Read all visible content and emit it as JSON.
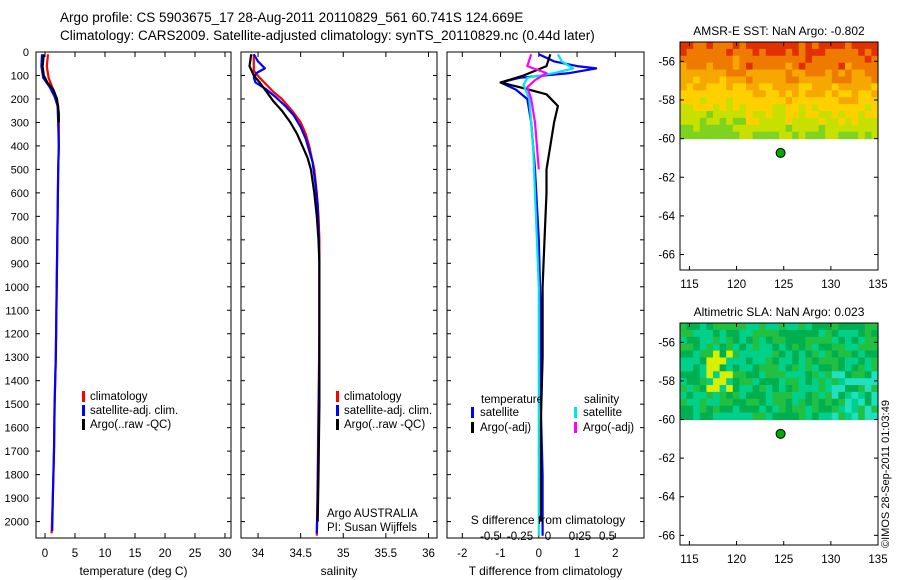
{
  "header": {
    "line1": "Argo profile: CS 5903675_17 28-Aug-2011 20110829_561 60.741S 124.669E",
    "line2": "Climatology: CARS2009. Satellite-adjusted climatology: synTS_20110829.nc (0.44d later)"
  },
  "credit": "©IMOS 28-Sep-2011 01:03:49",
  "colors": {
    "climatology": "#ff0000",
    "satellite": "#0000ff",
    "argo": "#000000",
    "sat_salinity": "#00e5e5",
    "argo_salinity": "#ff00ff",
    "float_marker": "#00aa00"
  },
  "chart_data": [
    {
      "type": "line",
      "name": "temperature-profile",
      "xlabel": "temperature (deg C)",
      "ylabel": "",
      "xlim": [
        -1.5,
        31
      ],
      "ylim": [
        2070,
        0
      ],
      "xticks": [
        0,
        5,
        10,
        15,
        20,
        25,
        30
      ],
      "yticks": [
        0,
        100,
        200,
        300,
        400,
        500,
        600,
        700,
        800,
        900,
        1000,
        1100,
        1200,
        1300,
        1400,
        1500,
        1600,
        1700,
        1800,
        1900,
        2000
      ],
      "legend": [
        "climatology",
        "satellite-adj. clim.",
        "Argo(..raw -QC)"
      ],
      "series": [
        {
          "name": "climatology",
          "color": "#ff0000",
          "points": [
            [
              0.5,
              10
            ],
            [
              0.3,
              60
            ],
            [
              0.6,
              110
            ],
            [
              1.2,
              150
            ],
            [
              1.8,
              190
            ],
            [
              2.2,
              230
            ],
            [
              2.3,
              300
            ],
            [
              2.3,
              400
            ],
            [
              2.2,
              500
            ],
            [
              2.1,
              700
            ],
            [
              2.0,
              900
            ],
            [
              1.9,
              1100
            ],
            [
              1.8,
              1300
            ],
            [
              1.6,
              1500
            ],
            [
              1.5,
              1700
            ],
            [
              1.3,
              1900
            ],
            [
              1.1,
              2050
            ]
          ]
        },
        {
          "name": "satellite-adj. clim.",
          "color": "#0000ff",
          "points": [
            [
              -0.5,
              10
            ],
            [
              -0.6,
              60
            ],
            [
              -0.3,
              110
            ],
            [
              0.8,
              150
            ],
            [
              1.6,
              190
            ],
            [
              2.1,
              230
            ],
            [
              2.2,
              300
            ],
            [
              2.3,
              400
            ],
            [
              2.2,
              500
            ],
            [
              2.1,
              700
            ],
            [
              2.0,
              900
            ],
            [
              1.9,
              1100
            ],
            [
              1.8,
              1300
            ],
            [
              1.6,
              1500
            ],
            [
              1.5,
              1700
            ],
            [
              1.3,
              1900
            ],
            [
              1.2,
              2040
            ]
          ]
        },
        {
          "name": "Argo(..raw -QC)",
          "color": "#000000",
          "points": [
            [
              -0.2,
              10
            ],
            [
              -0.4,
              60
            ],
            [
              -0.2,
              100
            ],
            [
              0.4,
              130
            ],
            [
              1.4,
              160
            ],
            [
              2.0,
              200
            ],
            [
              2.3,
              260
            ],
            [
              2.3,
              300
            ]
          ]
        }
      ]
    },
    {
      "type": "line",
      "name": "salinity-profile",
      "xlabel": "salinity",
      "xlim": [
        33.8,
        36.1
      ],
      "ylim": [
        2070,
        0
      ],
      "xticks": [
        34,
        34.5,
        35,
        35.5,
        36
      ],
      "legend": [
        "climatology",
        "satellite-adj. clim.",
        "Argo(..raw -QC)"
      ],
      "annotations": [
        "Argo AUSTRALIA",
        "PI: Susan Wijffels"
      ],
      "series": [
        {
          "name": "climatology",
          "color": "#ff0000",
          "points": [
            [
              33.95,
              10
            ],
            [
              33.95,
              80
            ],
            [
              34.02,
              110
            ],
            [
              34.1,
              140
            ],
            [
              34.18,
              170
            ],
            [
              34.28,
              200
            ],
            [
              34.4,
              250
            ],
            [
              34.5,
              300
            ],
            [
              34.56,
              350
            ],
            [
              34.6,
              400
            ],
            [
              34.63,
              450
            ],
            [
              34.66,
              500
            ],
            [
              34.69,
              600
            ],
            [
              34.71,
              700
            ],
            [
              34.72,
              800
            ],
            [
              34.72,
              900
            ],
            [
              34.72,
              1000
            ],
            [
              34.72,
              1200
            ],
            [
              34.71,
              1500
            ],
            [
              34.7,
              1800
            ],
            [
              34.69,
              2060
            ]
          ]
        },
        {
          "name": "satellite-adj. clim.",
          "color": "#0000ff",
          "points": [
            [
              33.95,
              10
            ],
            [
              34.0,
              40
            ],
            [
              34.08,
              70
            ],
            [
              33.98,
              90
            ],
            [
              33.95,
              110
            ],
            [
              33.97,
              130
            ],
            [
              34.1,
              160
            ],
            [
              34.2,
              190
            ],
            [
              34.32,
              230
            ],
            [
              34.42,
              270
            ],
            [
              34.5,
              320
            ],
            [
              34.56,
              370
            ],
            [
              34.6,
              420
            ],
            [
              34.64,
              470
            ],
            [
              34.67,
              550
            ],
            [
              34.7,
              650
            ],
            [
              34.71,
              750
            ],
            [
              34.72,
              900
            ],
            [
              34.72,
              1100
            ],
            [
              34.72,
              1300
            ],
            [
              34.71,
              1600
            ],
            [
              34.7,
              1900
            ],
            [
              34.69,
              2050
            ]
          ]
        },
        {
          "name": "Argo(..raw -QC)",
          "color": "#000000",
          "points": [
            [
              33.92,
              10
            ],
            [
              33.9,
              60
            ],
            [
              33.95,
              100
            ],
            [
              34.02,
              130
            ],
            [
              34.1,
              170
            ],
            [
              34.18,
              210
            ],
            [
              34.28,
              250
            ],
            [
              34.38,
              300
            ],
            [
              34.46,
              350
            ],
            [
              34.52,
              400
            ],
            [
              34.58,
              450
            ],
            [
              34.62,
              500
            ],
            [
              34.66,
              600
            ],
            [
              34.69,
              700
            ],
            [
              34.71,
              800
            ],
            [
              34.72,
              900
            ],
            [
              34.72,
              1000
            ],
            [
              34.72,
              1200
            ],
            [
              34.72,
              1500
            ],
            [
              34.71,
              1800
            ],
            [
              34.7,
              2000
            ]
          ]
        }
      ]
    },
    {
      "type": "line",
      "name": "difference-profile",
      "xlabel": "T difference from climatology",
      "xlabel_top": "S difference from climatology",
      "xlim": [
        -2.4,
        2.75
      ],
      "ylim": [
        2070,
        0
      ],
      "xticks": [
        -2,
        -1,
        0,
        1,
        2
      ],
      "xticks_top": [
        "-0.5",
        "-0.25",
        "0",
        "0.25",
        "0.5"
      ],
      "legend_group_titles": [
        "temperature",
        "salinity"
      ],
      "legend": [
        "satellite",
        "Argo(-adj)",
        "satellite",
        "Argo(-adj)"
      ],
      "series": [
        {
          "name": "temperature satellite",
          "color": "#0000ff",
          "points": [
            [
              0.0,
              10
            ],
            [
              0.4,
              40
            ],
            [
              1.0,
              60
            ],
            [
              1.5,
              70
            ],
            [
              0.8,
              90
            ],
            [
              -0.5,
              110
            ],
            [
              -1.0,
              130
            ],
            [
              -0.6,
              160
            ],
            [
              -0.3,
              200
            ],
            [
              -0.2,
              300
            ],
            [
              -0.1,
              500
            ],
            [
              0.0,
              800
            ],
            [
              0.05,
              1100
            ],
            [
              0.05,
              1500
            ],
            [
              0.1,
              1800
            ],
            [
              0.1,
              2060
            ]
          ]
        },
        {
          "name": "temperature Argo(-adj)",
          "color": "#000000",
          "points": [
            [
              0.3,
              10
            ],
            [
              0.2,
              60
            ],
            [
              -0.4,
              100
            ],
            [
              -1.0,
              130
            ],
            [
              -0.5,
              150
            ],
            [
              0.2,
              180
            ],
            [
              0.5,
              230
            ],
            [
              0.4,
              300
            ],
            [
              0.3,
              400
            ],
            [
              0.2,
              500
            ],
            [
              0.2,
              600
            ],
            [
              0.15,
              800
            ],
            [
              0.1,
              1000
            ],
            [
              0.1,
              1300
            ],
            [
              0.05,
              1600
            ],
            [
              0.05,
              1900
            ],
            [
              0.05,
              2000
            ]
          ]
        },
        {
          "name": "salinity satellite",
          "color": "#00e5e5",
          "points": [
            [
              0.5,
              10
            ],
            [
              0.6,
              40
            ],
            [
              0.9,
              70
            ],
            [
              0.4,
              90
            ],
            [
              -0.3,
              110
            ],
            [
              -0.4,
              140
            ],
            [
              -0.25,
              200
            ],
            [
              -0.2,
              300
            ],
            [
              -0.15,
              400
            ],
            [
              -0.1,
              600
            ],
            [
              -0.05,
              800
            ],
            [
              0.0,
              1000
            ],
            [
              0.0,
              1500
            ],
            [
              0.0,
              2060
            ]
          ]
        },
        {
          "name": "salinity Argo(-adj)",
          "color": "#ff00ff",
          "points": [
            [
              -0.2,
              10
            ],
            [
              -0.3,
              60
            ],
            [
              0.2,
              90
            ],
            [
              -0.1,
              120
            ],
            [
              -0.3,
              150
            ],
            [
              -0.2,
              200
            ],
            [
              -0.1,
              300
            ],
            [
              -0.05,
              400
            ],
            [
              0.0,
              500
            ]
          ]
        }
      ]
    },
    {
      "type": "heatmap",
      "name": "sst-map",
      "title": "AMSR-E SST: NaN Argo: -0.802",
      "xlim": [
        114,
        135
      ],
      "ylim": [
        -66.8,
        -55
      ],
      "xticks": [
        115,
        120,
        125,
        130,
        135
      ],
      "yticks": [
        -56,
        -58,
        -60,
        -62,
        -64,
        -66
      ],
      "data_extent": {
        "lon": [
          114,
          135
        ],
        "lat": [
          -60,
          -55
        ]
      },
      "float": {
        "lon": 124.669,
        "lat": -60.741
      },
      "palette": [
        "#e23100",
        "#ef7a00",
        "#f7a800",
        "#ffd000",
        "#c8e000",
        "#7ed321"
      ]
    },
    {
      "type": "heatmap",
      "name": "sla-map",
      "title": "Altimetric SLA: NaN Argo: 0.023",
      "xlim": [
        114,
        135
      ],
      "ylim": [
        -66.5,
        -55
      ],
      "xticks": [
        115,
        120,
        125,
        130,
        135
      ],
      "yticks": [
        -56,
        -58,
        -60,
        -62,
        -64,
        -66
      ],
      "data_extent": {
        "lon": [
          114,
          135
        ],
        "lat": [
          -60,
          -55
        ]
      },
      "float": {
        "lon": 124.669,
        "lat": -60.741
      },
      "palette": [
        "#00b050",
        "#22c040",
        "#00d08a",
        "#20e0c0",
        "#a8e040",
        "#d8f000"
      ]
    }
  ]
}
